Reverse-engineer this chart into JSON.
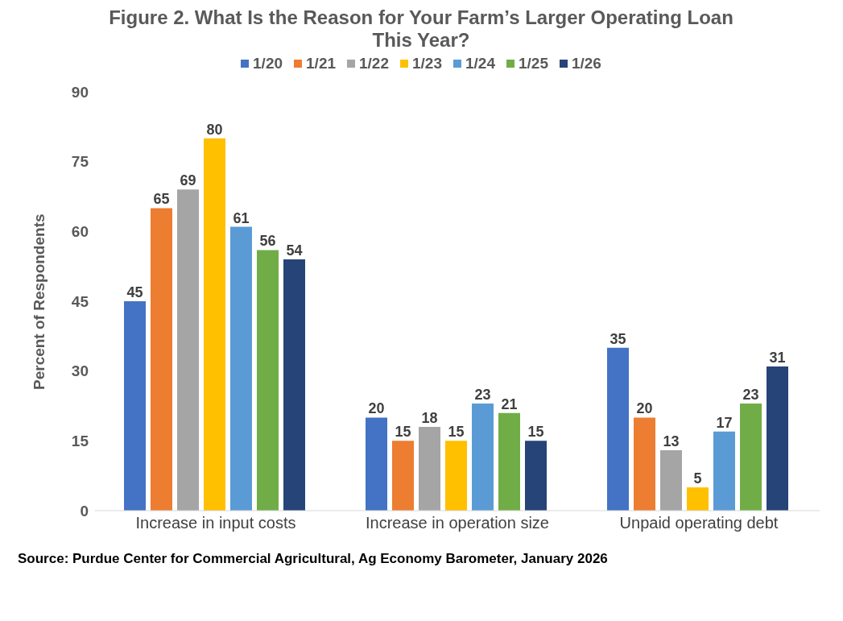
{
  "chart_data": {
    "type": "bar",
    "title": "Figure 2. What Is the Reason for Your Farm’s Larger Operating Loan This Year?",
    "ylabel": "Percent of Respondents",
    "categories": [
      "Increase in input costs",
      "Increase in operation size",
      "Unpaid operating debt"
    ],
    "series": [
      {
        "name": "1/20",
        "color": "#4472c4",
        "values": [
          45,
          20,
          35
        ]
      },
      {
        "name": "1/21",
        "color": "#ed7d31",
        "values": [
          65,
          15,
          20
        ]
      },
      {
        "name": "1/22",
        "color": "#a5a5a5",
        "values": [
          69,
          18,
          13
        ]
      },
      {
        "name": "1/23",
        "color": "#ffc000",
        "values": [
          80,
          15,
          5
        ]
      },
      {
        "name": "1/24",
        "color": "#5b9bd5",
        "values": [
          61,
          23,
          17
        ]
      },
      {
        "name": "1/25",
        "color": "#70ad47",
        "values": [
          56,
          21,
          23
        ]
      },
      {
        "name": "1/26",
        "color": "#264478",
        "values": [
          54,
          15,
          31
        ]
      }
    ],
    "ylim": [
      0,
      90
    ],
    "yticks": [
      0,
      15,
      30,
      45,
      60,
      75,
      90
    ],
    "grid": false,
    "legend": "top",
    "data_labels": true,
    "annotations": [
      "Source: Purdue Center for Commercial Agricultural, Ag Economy Barometer, January 2026"
    ]
  }
}
